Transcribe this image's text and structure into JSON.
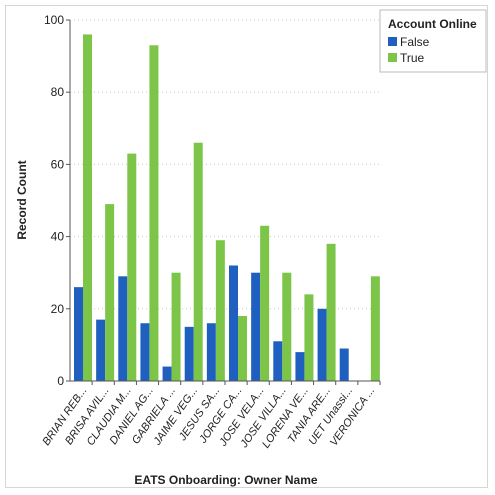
{
  "chart_data": {
    "type": "bar",
    "xlabel": "EATS Onboarding: Owner Name",
    "ylabel": "Record Count",
    "ylim": [
      0,
      100
    ],
    "yticks": [
      0,
      20,
      40,
      60,
      80,
      100
    ],
    "grid": true,
    "legend": {
      "title": "Account Online",
      "placement": "top-right"
    },
    "categories": [
      "BRIAN REB...",
      "BRISA AVIL...",
      "CLAUDIA M...",
      "DANIEL AG...",
      "GABRIELA ...",
      "JAIME VEG...",
      "JESUS SA...",
      "JORGE CA...",
      "JOSE VELA...",
      "JOSE VILLA...",
      "LORENA VE...",
      "TANIA ARE...",
      "UET Unassi...",
      "VERONICA ..."
    ],
    "series": [
      {
        "name": "False",
        "color": "#1f5fbf",
        "values": [
          26,
          17,
          29,
          16,
          4,
          15,
          16,
          32,
          30,
          11,
          8,
          20,
          9,
          0
        ]
      },
      {
        "name": "True",
        "color": "#7cc548",
        "values": [
          96,
          49,
          63,
          93,
          30,
          66,
          39,
          18,
          43,
          30,
          24,
          38,
          0,
          29
        ]
      }
    ]
  }
}
